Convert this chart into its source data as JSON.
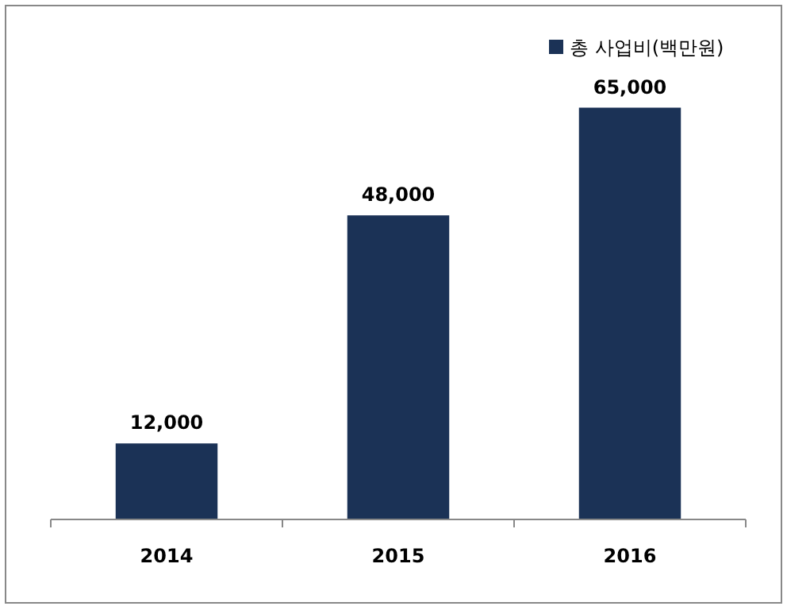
{
  "chart_data": {
    "type": "bar",
    "categories": [
      "2014",
      "2015",
      "2016"
    ],
    "series": [
      {
        "name": "총 사업비(백만원)",
        "color": "#1b3256",
        "values": [
          12000,
          48000,
          65000
        ],
        "value_labels": [
          "12,000",
          "48,000",
          "65,000"
        ]
      }
    ],
    "legend": "top right",
    "grid": false
  }
}
